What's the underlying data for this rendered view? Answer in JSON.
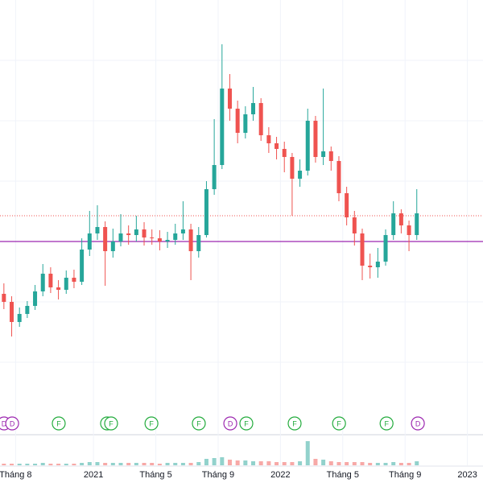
{
  "chart_data": {
    "type": "candlestick",
    "xlim": [
      -1,
      30
    ],
    "ylim": [
      0,
      60
    ],
    "xticks": [
      {
        "value": 0,
        "label": "Tháng 8"
      },
      {
        "value": 5,
        "label": "2021"
      },
      {
        "value": 9,
        "label": "Tháng 5"
      },
      {
        "value": 13,
        "label": "Tháng 9"
      },
      {
        "value": 17,
        "label": "2022"
      },
      {
        "value": 21,
        "label": "Tháng 5"
      },
      {
        "value": 25,
        "label": "Tháng 9"
      },
      {
        "value": 29,
        "label": "2023"
      }
    ],
    "ygrid": [
      52.5,
      45,
      37.5,
      30,
      22.5,
      15
    ],
    "up_color": "#26a69a",
    "down_color": "#ef5350",
    "x": [
      -0.75,
      -0.25,
      0.25,
      0.75,
      1.25,
      1.75,
      2.25,
      2.75,
      3.25,
      3.75,
      4.25,
      4.75,
      5.25,
      5.75,
      6.25,
      6.75,
      7.25,
      7.75,
      8.25,
      8.75,
      9.25,
      9.75,
      10.25,
      10.75,
      11.25,
      11.75,
      12.25,
      12.75,
      13.25,
      13.75,
      14.25,
      14.75,
      15.25,
      15.75,
      16.25,
      16.75,
      17.25,
      17.75,
      18.25,
      18.75,
      19.25,
      19.75,
      20.25,
      20.75,
      21.25,
      21.75,
      22.25,
      22.75,
      23.25,
      23.75,
      24.25,
      24.75,
      25.25,
      25.75
    ],
    "open": [
      23.5,
      22.5,
      20.0,
      21.0,
      22.0,
      23.8,
      26.0,
      24.3,
      24.0,
      25.5,
      25.0,
      29.0,
      31.0,
      31.8,
      28.8,
      30.0,
      31.0,
      30.8,
      31.5,
      30.5,
      30.4,
      30.0,
      30.2,
      31.0,
      31.5,
      28.8,
      30.8,
      36.5,
      39.5,
      49.0,
      46.5,
      43.5,
      45.8,
      47.2,
      43.2,
      42.2,
      41.5,
      40.5,
      37.8,
      38.8,
      45.0,
      40.5,
      41.2,
      40.0,
      36.0,
      33.0,
      31.0,
      27.0,
      26.8,
      27.5,
      30.8,
      33.5,
      32.0,
      30.8
    ],
    "high": [
      24.8,
      23.2,
      21.8,
      22.6,
      24.6,
      27.2,
      26.8,
      25.2,
      26.4,
      26.5,
      30.4,
      33.8,
      34.5,
      32.5,
      31.6,
      33.4,
      32.0,
      33.2,
      32.4,
      31.5,
      31.4,
      31.2,
      32.2,
      35.0,
      32.2,
      31.8,
      37.5,
      45.2,
      54.5,
      50.8,
      47.5,
      46.8,
      49.2,
      47.8,
      44.2,
      43.0,
      42.4,
      41.0,
      40.2,
      46.5,
      45.6,
      49.0,
      41.8,
      40.6,
      36.8,
      33.8,
      31.6,
      28.5,
      29.2,
      31.5,
      35.0,
      34.0,
      32.6,
      36.5
    ],
    "low": [
      21.6,
      18.2,
      19.4,
      20.5,
      21.5,
      23.2,
      23.6,
      22.8,
      23.5,
      24.2,
      24.6,
      28.2,
      30.2,
      24.5,
      28.0,
      29.4,
      29.6,
      30.0,
      29.5,
      29.6,
      28.9,
      29.2,
      29.6,
      30.2,
      25.2,
      28.0,
      30.5,
      35.8,
      39.0,
      45.0,
      42.2,
      42.8,
      45.0,
      42.5,
      41.0,
      40.2,
      38.6,
      33.2,
      36.8,
      38.2,
      39.8,
      39.5,
      38.8,
      35.0,
      32.0,
      29.5,
      25.2,
      25.4,
      25.5,
      27.0,
      30.2,
      31.0,
      28.8,
      30.2
    ],
    "close": [
      22.5,
      20.0,
      21.0,
      22.0,
      23.8,
      26.0,
      24.3,
      24.0,
      25.5,
      25.0,
      29.0,
      31.0,
      31.8,
      28.8,
      30.0,
      31.0,
      30.8,
      31.5,
      30.5,
      30.4,
      30.0,
      30.2,
      31.0,
      31.5,
      28.8,
      30.8,
      36.5,
      39.5,
      49.0,
      46.5,
      43.5,
      45.8,
      47.2,
      43.2,
      42.2,
      41.5,
      40.5,
      37.8,
      38.8,
      45.0,
      40.5,
      41.2,
      40.0,
      36.0,
      33.0,
      31.0,
      27.0,
      26.8,
      27.5,
      30.8,
      33.5,
      32.0,
      30.8,
      33.5
    ],
    "volume": [
      2,
      2,
      2,
      2,
      2,
      3,
      2,
      2,
      2,
      2,
      3,
      4,
      4,
      3,
      3,
      3,
      3,
      3,
      3,
      3,
      2,
      3,
      3,
      3,
      3,
      4,
      8,
      9,
      10,
      7,
      6,
      6,
      5,
      5,
      5,
      4,
      4,
      4,
      5,
      30,
      8,
      7,
      5,
      4,
      4,
      4,
      4,
      3,
      3,
      3,
      4,
      3,
      3,
      5
    ],
    "volume_lim": [
      0,
      35
    ],
    "price_line": 33.2,
    "price_line_color": "#ef5350",
    "level_line": 30,
    "level_line_color": "#9c27b0",
    "events": [
      {
        "x": -0.74,
        "label": "D"
      },
      {
        "x": -0.22,
        "label": "D"
      },
      {
        "x": 2.77,
        "label": "F"
      },
      {
        "x": 5.87,
        "label": "F"
      },
      {
        "x": 6.13,
        "label": "F"
      },
      {
        "x": 8.72,
        "label": "F"
      },
      {
        "x": 11.76,
        "label": "F"
      },
      {
        "x": 13.78,
        "label": "D"
      },
      {
        "x": 14.81,
        "label": "F"
      },
      {
        "x": 17.91,
        "label": "F"
      },
      {
        "x": 20.76,
        "label": "F"
      },
      {
        "x": 23.81,
        "label": "F"
      },
      {
        "x": 25.82,
        "label": "D"
      }
    ],
    "event_colors": {
      "F": "#22ab3c",
      "D": "#9c27b0"
    }
  }
}
